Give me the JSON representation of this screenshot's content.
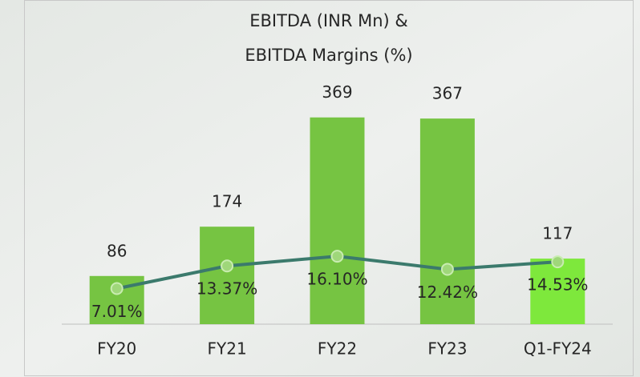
{
  "chart_data": {
    "type": "bar-line",
    "title": [
      "EBITDA (INR Mn) &",
      "EBITDA Margins (%)"
    ],
    "categories": [
      "FY20",
      "FY21",
      "FY22",
      "FY23",
      "Q1-FY24"
    ],
    "series": [
      {
        "type": "bar",
        "colors": [
          "#76c442",
          "#76c442",
          "#76c442",
          "#76c442",
          "#7ee83c"
        ],
        "values": [
          86,
          174,
          369,
          367,
          117
        ]
      },
      {
        "type": "line",
        "axis": "y2",
        "color": "#3b7a6c",
        "marker_color": "#9fd77a",
        "values": [
          7.01,
          13.37,
          16.1,
          12.42,
          14.53
        ],
        "value_labels": [
          "7.01%",
          "13.37%",
          "16.10%",
          "12.42%",
          "14.53%"
        ]
      }
    ],
    "ylim": [
      0,
      400
    ],
    "y2lim": [
      -3,
      60
    ]
  }
}
